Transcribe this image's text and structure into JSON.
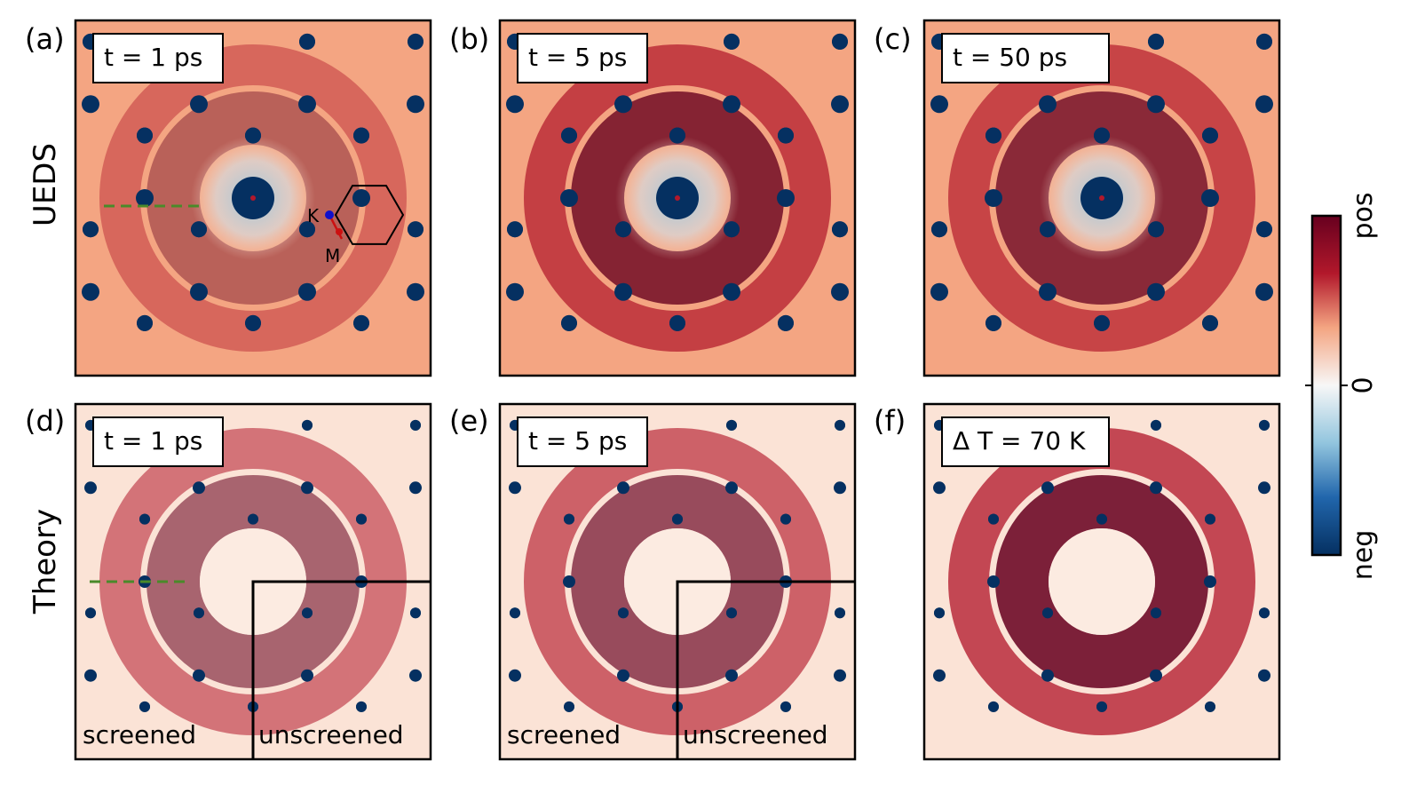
{
  "figure": {
    "row_labels": [
      "UEDS",
      "Theory"
    ],
    "panels": [
      {
        "label": "(a)",
        "inset": "t = 1 ps",
        "row": "UEDS",
        "ring_strength": 0.35,
        "dark_center": 1.0
      },
      {
        "label": "(b)",
        "inset": "t = 5 ps",
        "row": "UEDS",
        "ring_strength": 0.85,
        "dark_center": 1.0
      },
      {
        "label": "(c)",
        "inset": "t = 50 ps",
        "row": "UEDS",
        "ring_strength": 0.8,
        "dark_center": 1.0
      },
      {
        "label": "(d)",
        "inset": "t = 1 ps",
        "row": "Theory",
        "ring_strength": 0.55,
        "dark_center": 0.0
      },
      {
        "label": "(e)",
        "inset": "t = 5 ps",
        "row": "Theory",
        "ring_strength": 0.7,
        "dark_center": 0.0
      },
      {
        "label": "(f)",
        "inset": "Δ T = 70 K",
        "row": "Theory",
        "ring_strength": 0.95,
        "dark_center": 0.0
      }
    ],
    "region_labels": {
      "screened": "screened",
      "unscreened": "unscreened"
    },
    "high_symmetry_points": {
      "K": "K",
      "M": "M"
    },
    "colorbar": {
      "top": "pos",
      "middle": "0",
      "bottom": "neg",
      "colormap": "RdBu_r"
    },
    "colors": {
      "pos_dark": "#67001f",
      "pos_mid": "#b2182b",
      "pos_light": "#f4a582",
      "zero": "#f7f7f7",
      "neg_light": "#92c5de",
      "neg_mid": "#2166ac",
      "neg_dark": "#053061",
      "dash_green": "#4a8a2a",
      "k_point": "#1010cc",
      "m_point": "#cc1010"
    }
  }
}
